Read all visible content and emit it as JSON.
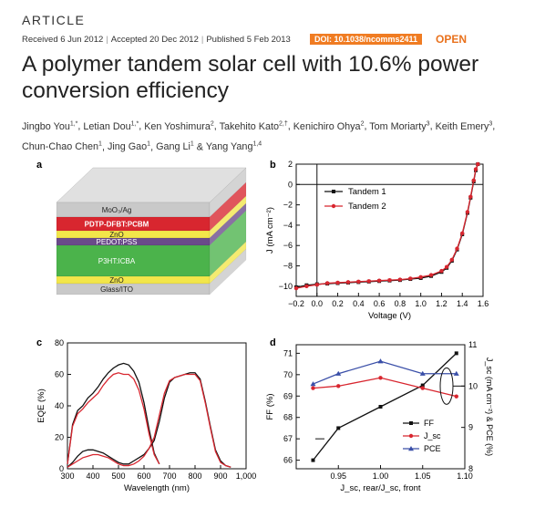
{
  "header": {
    "article_label": "ARTICLE",
    "received": "Received 6 Jun 2012",
    "accepted": "Accepted 20 Dec 2012",
    "published": "Published 5 Feb 2013",
    "doi": "DOI: 10.1038/ncomms2411",
    "open": "OPEN",
    "separator": "|"
  },
  "title": "A polymer tandem solar cell with 10.6% power conversion efficiency",
  "authors": [
    {
      "name": "Jingbo You",
      "sup": "1,*"
    },
    {
      "name": "Letian Dou",
      "sup": "1,*"
    },
    {
      "name": "Ken Yoshimura",
      "sup": "2"
    },
    {
      "name": "Takehito Kato",
      "sup": "2,†"
    },
    {
      "name": "Kenichiro Ohya",
      "sup": "2"
    },
    {
      "name": "Tom Moriarty",
      "sup": "3"
    },
    {
      "name": "Keith Emery",
      "sup": "3"
    },
    {
      "name": "Chun-Chao Chen",
      "sup": "1"
    },
    {
      "name": "Jing Gao",
      "sup": "1"
    },
    {
      "name": "Gang Li",
      "sup": "1"
    },
    {
      "name": "Yang Yang",
      "sup": "1,4"
    }
  ],
  "author_sep": ", ",
  "author_last_sep": " & ",
  "panels": {
    "a": {
      "letter": "a",
      "layers_top_to_bottom": [
        {
          "label": "MoO₃/Ag",
          "color": "#c9c9c9"
        },
        {
          "label": "PDTP-DFBT:PCBM",
          "color": "#d8262f"
        },
        {
          "label": "ZnO",
          "color": "#f2e64a"
        },
        {
          "label": "PEDOT:PSS",
          "color": "#6a4a8a"
        },
        {
          "label": "P3HT:ICBA",
          "color": "#4bb34b"
        },
        {
          "label": "ZnO",
          "color": "#f2e64a"
        },
        {
          "label": "Glass/ITO",
          "color": "#c9c9c9"
        }
      ]
    },
    "b": {
      "letter": "b"
    },
    "c": {
      "letter": "c"
    },
    "d": {
      "letter": "d"
    }
  },
  "chart_data": [
    {
      "panel": "b",
      "type": "line",
      "xlabel": "Voltage (V)",
      "ylabel": "J (mA cm⁻²)",
      "xlim": [
        -0.2,
        1.6
      ],
      "ylim": [
        -11,
        2
      ],
      "xticks": [
        -0.2,
        0.0,
        0.2,
        0.4,
        0.6,
        0.8,
        1.0,
        1.2,
        1.4,
        1.6
      ],
      "xtick_labels": [
        "−0.2",
        "0.0",
        "0.2",
        "0.4",
        "0.6",
        "0.8",
        "1.0",
        "1.2",
        "1.4",
        "1.6"
      ],
      "yticks": [
        -10,
        -8,
        -6,
        -4,
        -2,
        0,
        2
      ],
      "ytick_labels": [
        "−10",
        "−8",
        "−6",
        "−4",
        "−2",
        "0",
        "2"
      ],
      "legend": "top-left",
      "series": [
        {
          "name": "Tandem 1",
          "color": "#111111",
          "marker": "square",
          "x": [
            -0.2,
            -0.1,
            0.0,
            0.1,
            0.2,
            0.3,
            0.4,
            0.5,
            0.6,
            0.7,
            0.8,
            0.9,
            1.0,
            1.1,
            1.2,
            1.25,
            1.3,
            1.35,
            1.4,
            1.45,
            1.48,
            1.51,
            1.53,
            1.55
          ],
          "y": [
            -10.1,
            -9.9,
            -9.8,
            -9.75,
            -9.7,
            -9.65,
            -9.6,
            -9.55,
            -9.5,
            -9.45,
            -9.4,
            -9.3,
            -9.2,
            -9.0,
            -8.6,
            -8.2,
            -7.5,
            -6.4,
            -4.9,
            -2.8,
            -1.3,
            0.3,
            1.4,
            2.0
          ]
        },
        {
          "name": "Tandem 2",
          "color": "#d8262f",
          "marker": "circle",
          "x": [
            -0.2,
            -0.1,
            0.0,
            0.1,
            0.2,
            0.3,
            0.4,
            0.5,
            0.6,
            0.7,
            0.8,
            0.9,
            1.0,
            1.1,
            1.2,
            1.25,
            1.3,
            1.35,
            1.4,
            1.45,
            1.48,
            1.51,
            1.53,
            1.55
          ],
          "y": [
            -10.2,
            -10.0,
            -9.85,
            -9.7,
            -9.65,
            -9.6,
            -9.55,
            -9.5,
            -9.45,
            -9.4,
            -9.35,
            -9.25,
            -9.1,
            -8.9,
            -8.5,
            -8.1,
            -7.4,
            -6.3,
            -4.8,
            -2.7,
            -1.2,
            0.4,
            1.5,
            2.0
          ]
        }
      ]
    },
    {
      "panel": "c",
      "type": "line",
      "xlabel": "Wavelength (nm)",
      "ylabel": "EQE (%)",
      "xlim": [
        300,
        1000
      ],
      "ylim": [
        0,
        80
      ],
      "xticks": [
        300,
        400,
        500,
        600,
        700,
        800,
        900,
        1000
      ],
      "xtick_labels": [
        "300",
        "400",
        "500",
        "600",
        "700",
        "800",
        "900",
        "1,000"
      ],
      "yticks": [
        0,
        20,
        40,
        60,
        80
      ],
      "ytick_labels": [
        "0",
        "20",
        "40",
        "60",
        "80"
      ],
      "series": [
        {
          "name": "Front cell (black)",
          "color": "#111111",
          "x": [
            300,
            320,
            340,
            360,
            380,
            400,
            420,
            440,
            460,
            480,
            500,
            520,
            540,
            560,
            580,
            600,
            620,
            640,
            660
          ],
          "y": [
            3,
            28,
            37,
            40,
            45,
            48,
            52,
            57,
            61,
            64,
            66,
            67,
            66,
            62,
            55,
            42,
            25,
            10,
            3
          ]
        },
        {
          "name": "Front cell (red)",
          "color": "#d8262f",
          "x": [
            300,
            320,
            340,
            360,
            380,
            400,
            420,
            440,
            460,
            480,
            500,
            520,
            540,
            560,
            580,
            600,
            620,
            640,
            660
          ],
          "y": [
            3,
            27,
            35,
            38,
            42,
            45,
            48,
            53,
            57,
            60,
            61,
            60,
            60,
            57,
            50,
            38,
            22,
            9,
            3
          ]
        },
        {
          "name": "Rear cell (black)",
          "color": "#111111",
          "x": [
            300,
            320,
            340,
            360,
            380,
            400,
            420,
            440,
            460,
            480,
            500,
            520,
            540,
            560,
            580,
            600,
            620,
            640,
            660,
            680,
            700,
            720,
            740,
            760,
            780,
            800,
            820,
            840,
            860,
            880,
            900,
            920,
            940
          ],
          "y": [
            1,
            4,
            8,
            11,
            12,
            12,
            11,
            10,
            8,
            6,
            4,
            3,
            3,
            5,
            7,
            9,
            13,
            18,
            30,
            45,
            55,
            58,
            59,
            60,
            61,
            61,
            57,
            43,
            27,
            12,
            5,
            2,
            1
          ]
        },
        {
          "name": "Rear cell (red)",
          "color": "#d8262f",
          "x": [
            300,
            320,
            340,
            360,
            380,
            400,
            420,
            440,
            460,
            480,
            500,
            520,
            540,
            560,
            580,
            600,
            620,
            640,
            660,
            680,
            700,
            720,
            740,
            760,
            780,
            800,
            820,
            840,
            860,
            880,
            900,
            920,
            940
          ],
          "y": [
            1,
            3,
            5,
            7,
            8,
            9,
            9,
            8,
            7,
            5,
            3,
            2,
            2,
            3,
            5,
            8,
            13,
            20,
            34,
            48,
            56,
            58,
            59,
            60,
            60,
            60,
            56,
            42,
            26,
            11,
            4,
            2,
            1
          ]
        }
      ]
    },
    {
      "panel": "d",
      "type": "line",
      "xlabel": "J_sc, rear/J_sc, front",
      "ylabel": "FF (%)",
      "ylabel_right": "J_sc (mA cm⁻²) & PCE (%)",
      "xlim": [
        0.9,
        1.1
      ],
      "ylim": [
        65.6,
        71.4
      ],
      "ylim_right": [
        8,
        11
      ],
      "xticks": [
        0.95,
        1.0,
        1.05,
        1.1
      ],
      "xtick_labels": [
        "0.95",
        "1.00",
        "1.05",
        "1.10"
      ],
      "yticks": [
        66,
        67,
        68,
        69,
        70,
        71
      ],
      "ytick_labels": [
        "66",
        "67",
        "68",
        "69",
        "70",
        "71"
      ],
      "yticks_right": [
        8,
        9,
        10,
        11
      ],
      "ytick_labels_right": [
        "8",
        "9",
        "10",
        "11"
      ],
      "legend": "bottom-right",
      "series": [
        {
          "name": "FF",
          "color": "#111111",
          "marker": "square",
          "axis": "left",
          "x": [
            0.92,
            0.95,
            1.0,
            1.05,
            1.09
          ],
          "y": [
            66.0,
            67.5,
            68.5,
            69.5,
            71.0
          ]
        },
        {
          "name": "J_sc",
          "color": "#d8262f",
          "marker": "circle",
          "axis": "right",
          "x": [
            0.92,
            0.95,
            1.0,
            1.05,
            1.09
          ],
          "y": [
            9.95,
            10.0,
            10.2,
            9.95,
            9.75
          ]
        },
        {
          "name": "PCE",
          "color": "#3a4fa8",
          "marker": "triangle",
          "axis": "right",
          "x": [
            0.92,
            0.95,
            1.0,
            1.05,
            1.09
          ],
          "y": [
            10.05,
            10.3,
            10.6,
            10.3,
            10.3
          ]
        }
      ]
    }
  ]
}
